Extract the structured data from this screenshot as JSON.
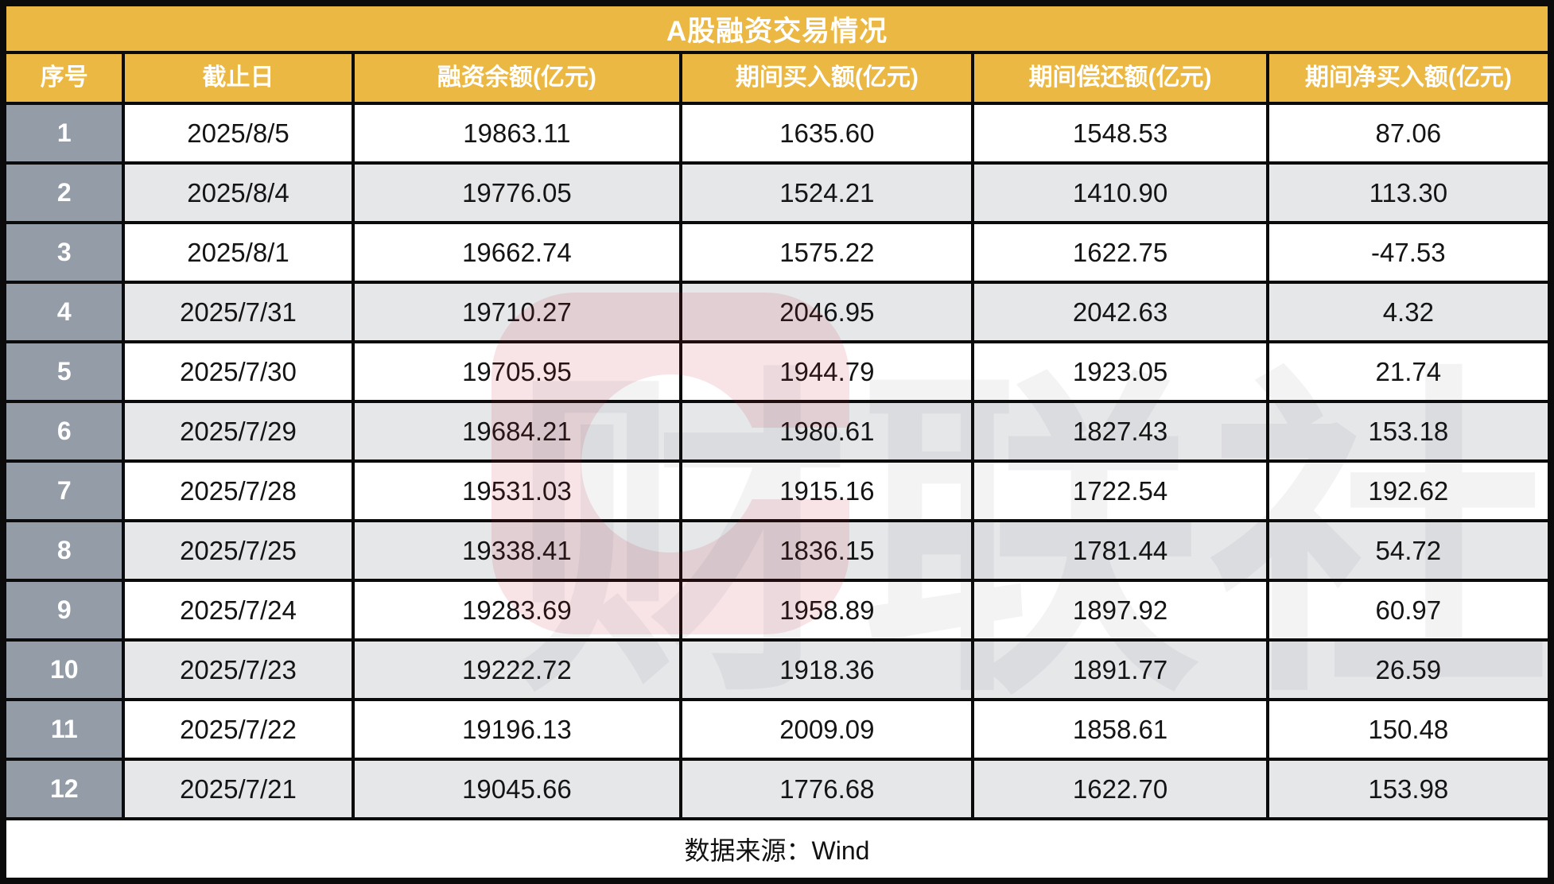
{
  "title": "A股融资交易情况",
  "footer": {
    "source_note": "数据来源：Wind"
  },
  "watermark": {
    "logo_name": "cailianshe-logo",
    "text": "财联社"
  },
  "colors": {
    "accent_orange": "#ECB844",
    "serial_gray": "#949CA8",
    "row_alt_gray": "#E6E7E9",
    "border_black": "#0B0B0B",
    "watermark_red": "#C2192E"
  },
  "chart_data": {
    "type": "table",
    "title": "A股融资交易情况",
    "source": "数据来源：Wind",
    "columns": [
      "序号",
      "截止日",
      "融资余额(亿元)",
      "期间买入额(亿元)",
      "期间偿还额(亿元)",
      "期间净买入额(亿元)"
    ],
    "column_keys": [
      "seq",
      "date",
      "balance",
      "buy",
      "repay",
      "net"
    ],
    "rows": [
      {
        "seq": "1",
        "date": "2025/8/5",
        "balance": "19863.11",
        "buy": "1635.60",
        "repay": "1548.53",
        "net": "87.06"
      },
      {
        "seq": "2",
        "date": "2025/8/4",
        "balance": "19776.05",
        "buy": "1524.21",
        "repay": "1410.90",
        "net": "113.30"
      },
      {
        "seq": "3",
        "date": "2025/8/1",
        "balance": "19662.74",
        "buy": "1575.22",
        "repay": "1622.75",
        "net": "-47.53"
      },
      {
        "seq": "4",
        "date": "2025/7/31",
        "balance": "19710.27",
        "buy": "2046.95",
        "repay": "2042.63",
        "net": "4.32"
      },
      {
        "seq": "5",
        "date": "2025/7/30",
        "balance": "19705.95",
        "buy": "1944.79",
        "repay": "1923.05",
        "net": "21.74"
      },
      {
        "seq": "6",
        "date": "2025/7/29",
        "balance": "19684.21",
        "buy": "1980.61",
        "repay": "1827.43",
        "net": "153.18"
      },
      {
        "seq": "7",
        "date": "2025/7/28",
        "balance": "19531.03",
        "buy": "1915.16",
        "repay": "1722.54",
        "net": "192.62"
      },
      {
        "seq": "8",
        "date": "2025/7/25",
        "balance": "19338.41",
        "buy": "1836.15",
        "repay": "1781.44",
        "net": "54.72"
      },
      {
        "seq": "9",
        "date": "2025/7/24",
        "balance": "19283.69",
        "buy": "1958.89",
        "repay": "1897.92",
        "net": "60.97"
      },
      {
        "seq": "10",
        "date": "2025/7/23",
        "balance": "19222.72",
        "buy": "1918.36",
        "repay": "1891.77",
        "net": "26.59"
      },
      {
        "seq": "11",
        "date": "2025/7/22",
        "balance": "19196.13",
        "buy": "2009.09",
        "repay": "1858.61",
        "net": "150.48"
      },
      {
        "seq": "12",
        "date": "2025/7/21",
        "balance": "19045.66",
        "buy": "1776.68",
        "repay": "1622.70",
        "net": "153.98"
      }
    ]
  }
}
